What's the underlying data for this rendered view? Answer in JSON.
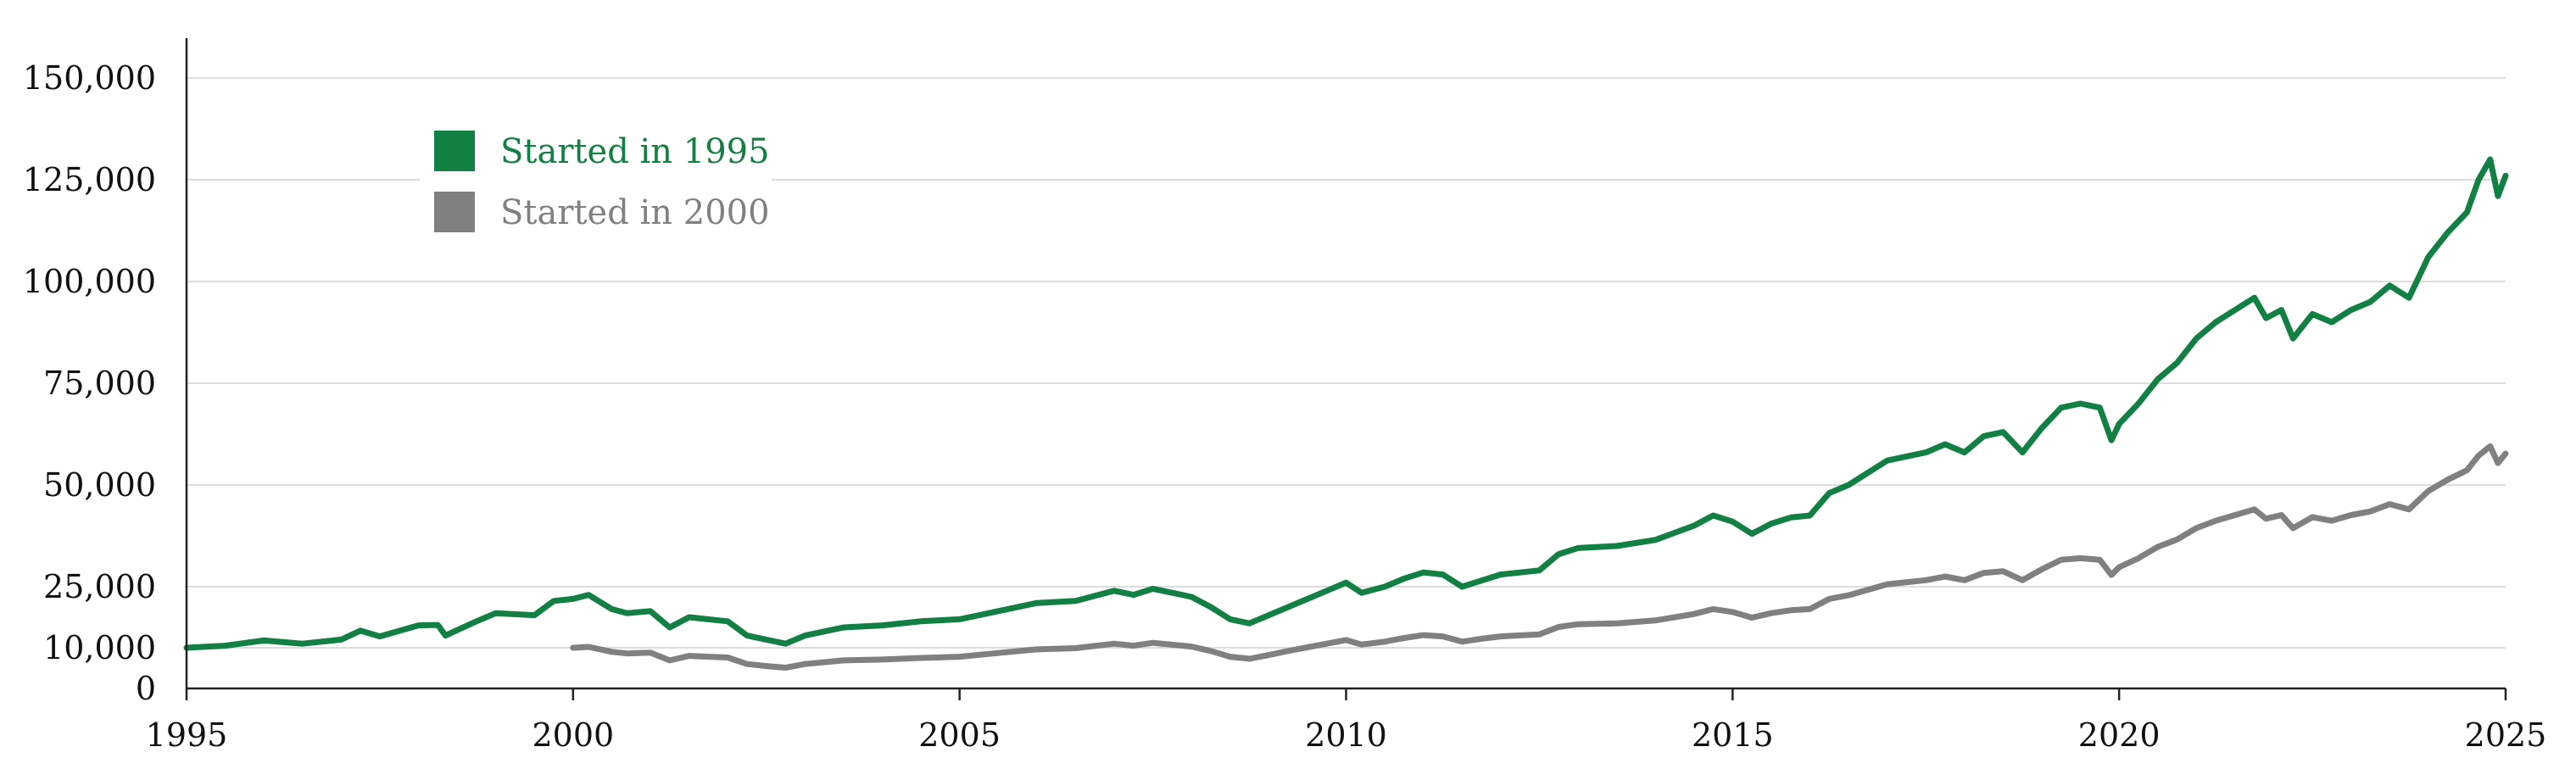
{
  "chart_data": {
    "type": "line",
    "title": "",
    "xlabel": "",
    "ylabel": "",
    "xlim": [
      1995,
      2025
    ],
    "ylim": [
      0,
      160000
    ],
    "grid": true,
    "legend_position": "top-left",
    "x_ticks": [
      "1995",
      "2000",
      "2005",
      "2010",
      "2015",
      "2020",
      "2025"
    ],
    "y_ticks": [
      {
        "value": 0,
        "label": "0"
      },
      {
        "value": 10000,
        "label": "10,000"
      },
      {
        "value": 25000,
        "label": "25,000"
      },
      {
        "value": 50000,
        "label": "50,000"
      },
      {
        "value": 75000,
        "label": "75,000"
      },
      {
        "value": 100000,
        "label": "100,000"
      },
      {
        "value": 125000,
        "label": "125,000"
      },
      {
        "value": 150000,
        "label": "150,000"
      }
    ],
    "series": [
      {
        "name": "Started in 1995",
        "color": "#138043",
        "points": [
          [
            1995.0,
            10000
          ],
          [
            1995.5,
            10500
          ],
          [
            1996.0,
            11800
          ],
          [
            1996.5,
            11000
          ],
          [
            1997.0,
            12000
          ],
          [
            1997.25,
            14200
          ],
          [
            1997.5,
            12800
          ],
          [
            1998.0,
            15500
          ],
          [
            1998.25,
            15600
          ],
          [
            1998.35,
            13000
          ],
          [
            1998.75,
            16500
          ],
          [
            1999.0,
            18500
          ],
          [
            1999.5,
            18000
          ],
          [
            1999.75,
            21500
          ],
          [
            2000.0,
            22000
          ],
          [
            2000.2,
            23000
          ],
          [
            2000.5,
            19500
          ],
          [
            2000.7,
            18500
          ],
          [
            2001.0,
            19000
          ],
          [
            2001.25,
            15000
          ],
          [
            2001.5,
            17500
          ],
          [
            2002.0,
            16500
          ],
          [
            2002.25,
            13000
          ],
          [
            2002.5,
            12000
          ],
          [
            2002.75,
            11000
          ],
          [
            2003.0,
            13000
          ],
          [
            2003.5,
            15000
          ],
          [
            2004.0,
            15500
          ],
          [
            2004.5,
            16500
          ],
          [
            2005.0,
            17000
          ],
          [
            2005.5,
            19000
          ],
          [
            2006.0,
            21000
          ],
          [
            2006.5,
            21500
          ],
          [
            2007.0,
            24000
          ],
          [
            2007.25,
            23000
          ],
          [
            2007.5,
            24500
          ],
          [
            2008.0,
            22500
          ],
          [
            2008.25,
            20000
          ],
          [
            2008.5,
            17000
          ],
          [
            2008.75,
            16000
          ],
          [
            2009.0,
            18000
          ],
          [
            2009.25,
            20000
          ],
          [
            2009.5,
            22000
          ],
          [
            2009.75,
            24000
          ],
          [
            2010.0,
            26000
          ],
          [
            2010.2,
            23500
          ],
          [
            2010.5,
            25000
          ],
          [
            2010.75,
            27000
          ],
          [
            2011.0,
            28500
          ],
          [
            2011.25,
            28000
          ],
          [
            2011.5,
            25000
          ],
          [
            2011.75,
            26500
          ],
          [
            2012.0,
            28000
          ],
          [
            2012.5,
            29000
          ],
          [
            2012.75,
            33000
          ],
          [
            2013.0,
            34500
          ],
          [
            2013.5,
            35000
          ],
          [
            2014.0,
            36500
          ],
          [
            2014.5,
            40000
          ],
          [
            2014.75,
            42500
          ],
          [
            2015.0,
            41000
          ],
          [
            2015.25,
            38000
          ],
          [
            2015.5,
            40500
          ],
          [
            2015.75,
            42000
          ],
          [
            2016.0,
            42500
          ],
          [
            2016.25,
            48000
          ],
          [
            2016.5,
            50000
          ],
          [
            2017.0,
            56000
          ],
          [
            2017.5,
            58000
          ],
          [
            2017.75,
            60000
          ],
          [
            2018.0,
            58000
          ],
          [
            2018.25,
            62000
          ],
          [
            2018.5,
            63000
          ],
          [
            2018.75,
            58000
          ],
          [
            2019.0,
            64000
          ],
          [
            2019.25,
            69000
          ],
          [
            2019.5,
            70000
          ],
          [
            2019.75,
            69000
          ],
          [
            2019.9,
            61000
          ],
          [
            2020.0,
            65000
          ],
          [
            2020.25,
            70000
          ],
          [
            2020.5,
            76000
          ],
          [
            2020.75,
            80000
          ],
          [
            2021.0,
            86000
          ],
          [
            2021.25,
            90000
          ],
          [
            2021.5,
            93000
          ],
          [
            2021.75,
            96000
          ],
          [
            2021.9,
            91000
          ],
          [
            2022.1,
            93000
          ],
          [
            2022.25,
            86000
          ],
          [
            2022.5,
            92000
          ],
          [
            2022.75,
            90000
          ],
          [
            2023.0,
            93000
          ],
          [
            2023.25,
            95000
          ],
          [
            2023.5,
            99000
          ],
          [
            2023.75,
            96000
          ],
          [
            2024.0,
            106000
          ],
          [
            2024.25,
            112000
          ],
          [
            2024.5,
            117000
          ],
          [
            2024.65,
            125000
          ],
          [
            2024.8,
            130000
          ],
          [
            2024.9,
            121000
          ],
          [
            2025.0,
            126000
          ]
        ]
      },
      {
        "name": "Started in 2000",
        "color": "#808080",
        "points": [
          [
            2000.0,
            10000
          ],
          [
            2000.2,
            10200
          ],
          [
            2000.5,
            9000
          ],
          [
            2000.7,
            8600
          ],
          [
            2001.0,
            8800
          ],
          [
            2001.25,
            6900
          ],
          [
            2001.5,
            8000
          ],
          [
            2002.0,
            7600
          ],
          [
            2002.25,
            6000
          ],
          [
            2002.5,
            5500
          ],
          [
            2002.75,
            5100
          ],
          [
            2003.0,
            6000
          ],
          [
            2003.5,
            6900
          ],
          [
            2004.0,
            7100
          ],
          [
            2004.5,
            7500
          ],
          [
            2005.0,
            7800
          ],
          [
            2005.5,
            8700
          ],
          [
            2006.0,
            9600
          ],
          [
            2006.5,
            9900
          ],
          [
            2007.0,
            11000
          ],
          [
            2007.25,
            10500
          ],
          [
            2007.5,
            11200
          ],
          [
            2008.0,
            10300
          ],
          [
            2008.25,
            9200
          ],
          [
            2008.5,
            7800
          ],
          [
            2008.75,
            7300
          ],
          [
            2009.0,
            8200
          ],
          [
            2009.25,
            9200
          ],
          [
            2009.5,
            10100
          ],
          [
            2009.75,
            11000
          ],
          [
            2010.0,
            11900
          ],
          [
            2010.2,
            10800
          ],
          [
            2010.5,
            11500
          ],
          [
            2010.75,
            12400
          ],
          [
            2011.0,
            13100
          ],
          [
            2011.25,
            12800
          ],
          [
            2011.5,
            11500
          ],
          [
            2011.75,
            12200
          ],
          [
            2012.0,
            12800
          ],
          [
            2012.5,
            13300
          ],
          [
            2012.75,
            15100
          ],
          [
            2013.0,
            15800
          ],
          [
            2013.5,
            16000
          ],
          [
            2014.0,
            16700
          ],
          [
            2014.5,
            18300
          ],
          [
            2014.75,
            19500
          ],
          [
            2015.0,
            18800
          ],
          [
            2015.25,
            17400
          ],
          [
            2015.5,
            18500
          ],
          [
            2015.75,
            19200
          ],
          [
            2016.0,
            19500
          ],
          [
            2016.25,
            22000
          ],
          [
            2016.5,
            22900
          ],
          [
            2017.0,
            25600
          ],
          [
            2017.5,
            26600
          ],
          [
            2017.75,
            27500
          ],
          [
            2018.0,
            26600
          ],
          [
            2018.25,
            28400
          ],
          [
            2018.5,
            28800
          ],
          [
            2018.75,
            26600
          ],
          [
            2019.0,
            29300
          ],
          [
            2019.25,
            31600
          ],
          [
            2019.5,
            32000
          ],
          [
            2019.75,
            31600
          ],
          [
            2019.9,
            27900
          ],
          [
            2020.0,
            29800
          ],
          [
            2020.25,
            32000
          ],
          [
            2020.5,
            34800
          ],
          [
            2020.75,
            36600
          ],
          [
            2021.0,
            39400
          ],
          [
            2021.25,
            41200
          ],
          [
            2021.5,
            42600
          ],
          [
            2021.75,
            44000
          ],
          [
            2021.9,
            41700
          ],
          [
            2022.1,
            42600
          ],
          [
            2022.25,
            39400
          ],
          [
            2022.5,
            42100
          ],
          [
            2022.75,
            41200
          ],
          [
            2023.0,
            42600
          ],
          [
            2023.25,
            43500
          ],
          [
            2023.5,
            45300
          ],
          [
            2023.75,
            44000
          ],
          [
            2024.0,
            48500
          ],
          [
            2024.25,
            51300
          ],
          [
            2024.5,
            53600
          ],
          [
            2024.65,
            57200
          ],
          [
            2024.8,
            59500
          ],
          [
            2024.9,
            55400
          ],
          [
            2025.0,
            57700
          ]
        ]
      }
    ]
  }
}
